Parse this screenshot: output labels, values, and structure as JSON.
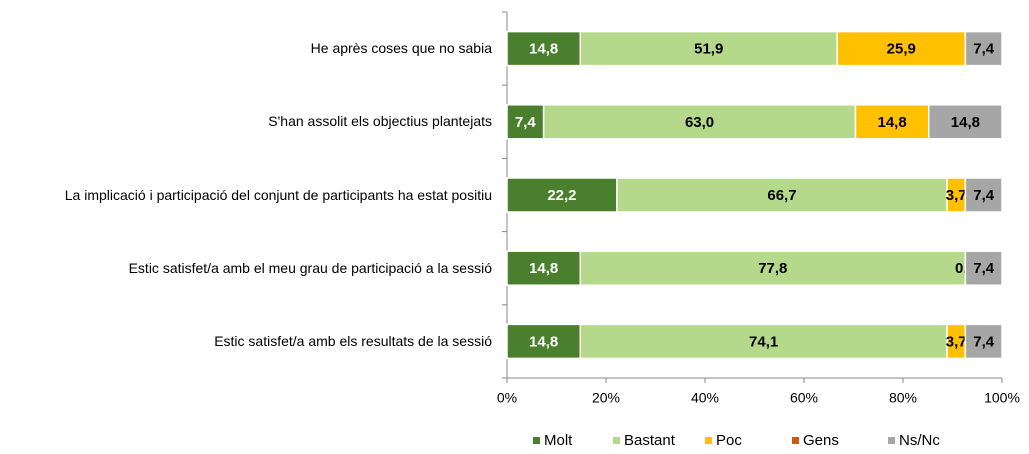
{
  "chart_data": {
    "type": "stacked-bar-horizontal",
    "categories": [
      "He après coses que no sabia",
      "S'han assolit els objectius plantejats",
      "La implicació i participació del conjunt de participants ha estat positiu",
      "Estic satisfet/a amb el meu grau de participació a la sessió",
      "Estic satisfet/a amb els resultats de la sessió"
    ],
    "series": [
      {
        "name": "Molt",
        "color": "#4a7f2e",
        "values": [
          14.8,
          7.4,
          22.2,
          14.8,
          14.8
        ],
        "value_labels": [
          "14,8",
          "7,4",
          "22,2",
          "14,8",
          "14,8"
        ]
      },
      {
        "name": "Bastant",
        "color": "#b5d98a",
        "values": [
          51.9,
          63.0,
          66.7,
          77.8,
          74.1
        ],
        "value_labels": [
          "51,9",
          "63,0",
          "66,7",
          "77,8",
          "74,1"
        ]
      },
      {
        "name": "Poc",
        "color": "#ffc000",
        "values": [
          25.9,
          14.8,
          3.7,
          0.0,
          3.7
        ],
        "value_labels": [
          "25,9",
          "14,8",
          "3,7",
          "0,0",
          "3,7"
        ]
      },
      {
        "name": "Gens",
        "color": "#c55a11",
        "values": [
          null,
          null,
          null,
          null,
          null
        ],
        "value_labels": [
          null,
          null,
          null,
          null,
          null
        ]
      },
      {
        "name": "Ns/Nc",
        "color": "#a6a6a6",
        "values": [
          7.4,
          14.8,
          7.4,
          7.4,
          7.4
        ],
        "value_labels": [
          "7,4",
          "14,8",
          "7,4",
          "7,4",
          "7,4"
        ]
      }
    ],
    "xlim": [
      0,
      100
    ],
    "xticks": [
      {
        "value": 0,
        "label": "0%"
      },
      {
        "value": 20,
        "label": "20%"
      },
      {
        "value": 40,
        "label": "40%"
      },
      {
        "value": 60,
        "label": "60%"
      },
      {
        "value": 80,
        "label": "80%"
      },
      {
        "value": 100,
        "label": "100%"
      }
    ],
    "legend": "bottom"
  }
}
